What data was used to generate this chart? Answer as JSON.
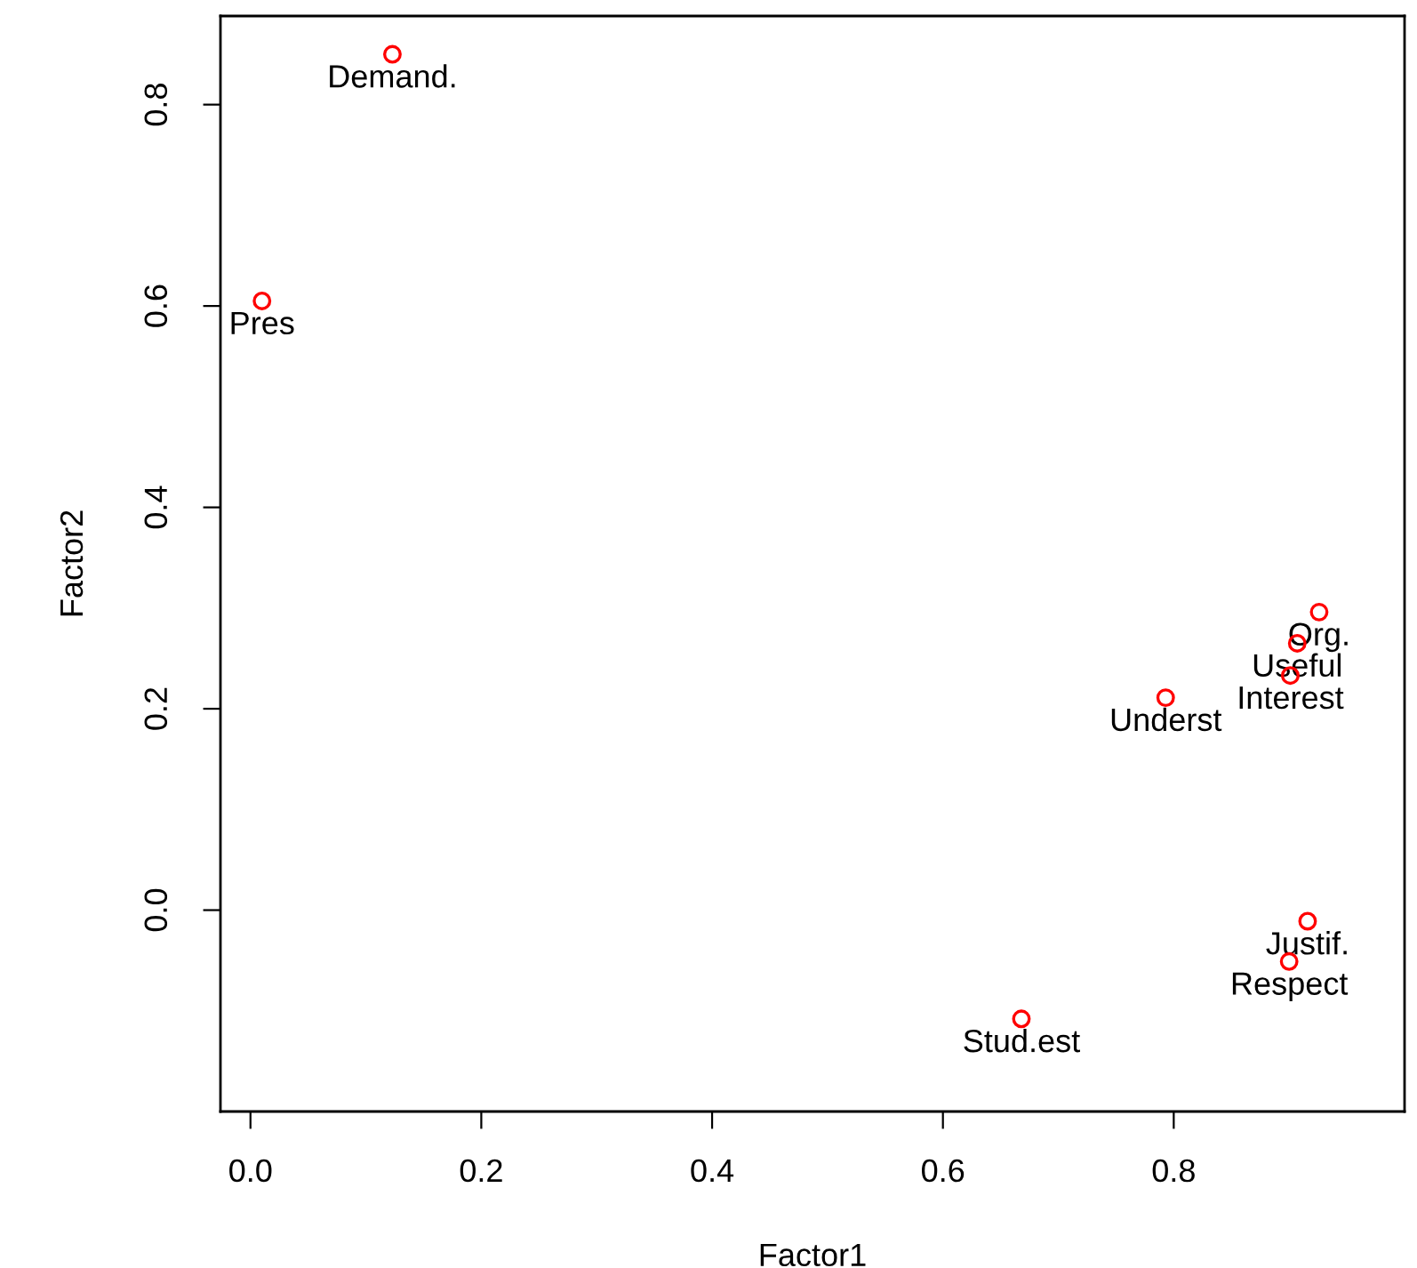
{
  "chart_data": {
    "type": "scatter",
    "xlabel": "Factor1",
    "ylabel": "Factor2",
    "x": [
      0.123,
      0.01,
      0.926,
      0.907,
      0.901,
      0.793,
      0.916,
      0.9,
      0.668
    ],
    "series": [
      {
        "color": "#ff0000",
        "values": [
          0.85,
          0.605,
          0.296,
          0.265,
          0.233,
          0.211,
          -0.011,
          -0.051,
          -0.108
        ]
      }
    ],
    "annotations": [
      {
        "text": "Demand.",
        "x": 0.123,
        "y": 0.85
      },
      {
        "text": "Pres",
        "x": 0.01,
        "y": 0.605
      },
      {
        "text": "Org.",
        "x": 0.926,
        "y": 0.296
      },
      {
        "text": "Useful",
        "x": 0.907,
        "y": 0.265
      },
      {
        "text": "Interest",
        "x": 0.901,
        "y": 0.233
      },
      {
        "text": "Underst",
        "x": 0.793,
        "y": 0.211
      },
      {
        "text": "Justif.",
        "x": 0.916,
        "y": -0.011
      },
      {
        "text": "Respect",
        "x": 0.9,
        "y": -0.051
      },
      {
        "text": "Stud.est",
        "x": 0.668,
        "y": -0.108
      }
    ],
    "xlim": [
      -0.026,
      1.0
    ],
    "ylim": [
      -0.2,
      0.888
    ],
    "xticks": [
      {
        "value": 0.0,
        "label": "0.0"
      },
      0.2,
      0.4,
      0.6,
      0.8
    ],
    "yticks": [
      {
        "value": 0.0,
        "label": "0.0"
      },
      0.2,
      0.4,
      0.6,
      0.8
    ],
    "marker": "circle",
    "grid": false,
    "legend": false
  }
}
